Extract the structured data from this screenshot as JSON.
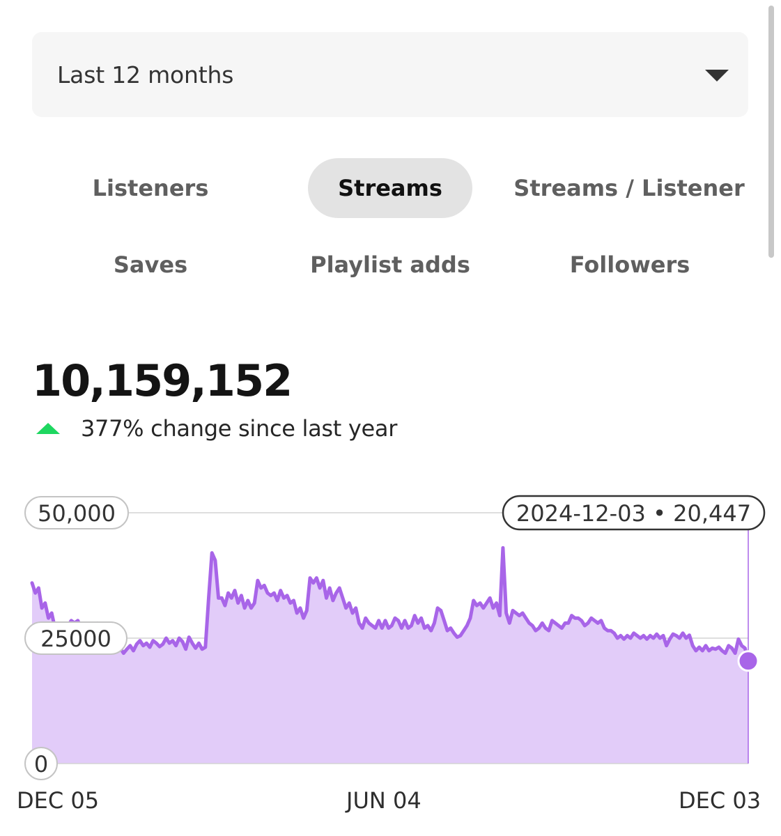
{
  "period_selector": {
    "value": "Last 12 months",
    "icon": "caret-down-icon"
  },
  "tabs": [
    {
      "label": "Listeners",
      "active": false
    },
    {
      "label": "Streams",
      "active": true
    },
    {
      "label": "Streams / Listener",
      "active": false
    },
    {
      "label": "Saves",
      "active": false
    },
    {
      "label": "Playlist adds",
      "active": false
    },
    {
      "label": "Followers",
      "active": false
    }
  ],
  "summary": {
    "total": "10,159,152",
    "change_text": "377% change since last year",
    "change_icon": "triangle-up-icon",
    "change_color": "#1ed760"
  },
  "tooltip": {
    "label": "2024-12-03 • 20,447"
  },
  "colors": {
    "line": "#a865e8",
    "fill": "#e2ccf9",
    "grid": "#d4d4d4"
  },
  "chart_data": {
    "type": "area",
    "ylim": [
      0,
      50000
    ],
    "yticks": [
      {
        "value": 50000,
        "label": "50,000"
      },
      {
        "value": 25000,
        "label": 25000
      },
      {
        "value": 0,
        "label": "0"
      }
    ],
    "xticks": [
      "DEC 05",
      "JUN 04",
      "DEC 03"
    ],
    "x_start": "2023-12-05",
    "x_end": "2024-12-03",
    "series": [
      {
        "values": [
          36000,
          34000,
          35000,
          31000,
          32000,
          29000,
          30000,
          27000,
          26500,
          27000,
          26000,
          27500,
          28500,
          28000,
          28500,
          27000,
          27500,
          26000,
          25500,
          26500,
          28000,
          26500,
          26000,
          24000,
          22800,
          23500,
          22500,
          23000,
          22000,
          22800,
          23500,
          22500,
          23800,
          24500,
          23500,
          24000,
          23200,
          24500,
          24000,
          23300,
          23800,
          25000,
          24000,
          24500,
          23500,
          25000,
          24300,
          22800,
          25200,
          24000,
          23000,
          24000,
          22800,
          23200,
          33000,
          42000,
          40500,
          33000,
          33000,
          31500,
          34000,
          33000,
          34500,
          32000,
          33500,
          31000,
          32500,
          31000,
          32000,
          36500,
          35000,
          35500,
          34000,
          33500,
          34000,
          32500,
          34500,
          33000,
          33500,
          32000,
          32500,
          30000,
          31000,
          29000,
          30500,
          37000,
          36000,
          37000,
          35000,
          36500,
          33000,
          35000,
          32500,
          34000,
          35000,
          33000,
          31000,
          32000,
          30000,
          31000,
          28000,
          27000,
          29000,
          28000,
          27500,
          27000,
          28500,
          27000,
          28500,
          27000,
          27500,
          29000,
          28500,
          27000,
          28500,
          27000,
          27500,
          29500,
          28000,
          29000,
          27000,
          27500,
          26500,
          28000,
          31000,
          30500,
          28500,
          26500,
          27000,
          26000,
          25200,
          25500,
          26500,
          27500,
          29000,
          32500,
          31500,
          32000,
          31000,
          32000,
          33000,
          31000,
          32000,
          29500,
          43000,
          30000,
          28000,
          30500,
          30000,
          29500,
          30000,
          29000,
          28000,
          27500,
          26500,
          27000,
          28000,
          27000,
          26500,
          28500,
          28000,
          27500,
          27000,
          28000,
          28000,
          29500,
          29000,
          29000,
          28500,
          27500,
          28000,
          29000,
          28500,
          28000,
          28500,
          27000,
          26500,
          26500,
          26000,
          25000,
          25500,
          24800,
          25500,
          25000,
          26000,
          25500,
          25000,
          25500,
          24800,
          25500,
          25000,
          25800,
          25000,
          25500,
          23500,
          24800,
          25800,
          25500,
          25000,
          26000,
          25000,
          25600,
          23500,
          22500,
          23200,
          22500,
          23500,
          22500,
          23000,
          22800,
          23200,
          22500,
          22000,
          23500,
          23000,
          22000,
          24800,
          23500,
          23000,
          20447
        ]
      }
    ]
  }
}
